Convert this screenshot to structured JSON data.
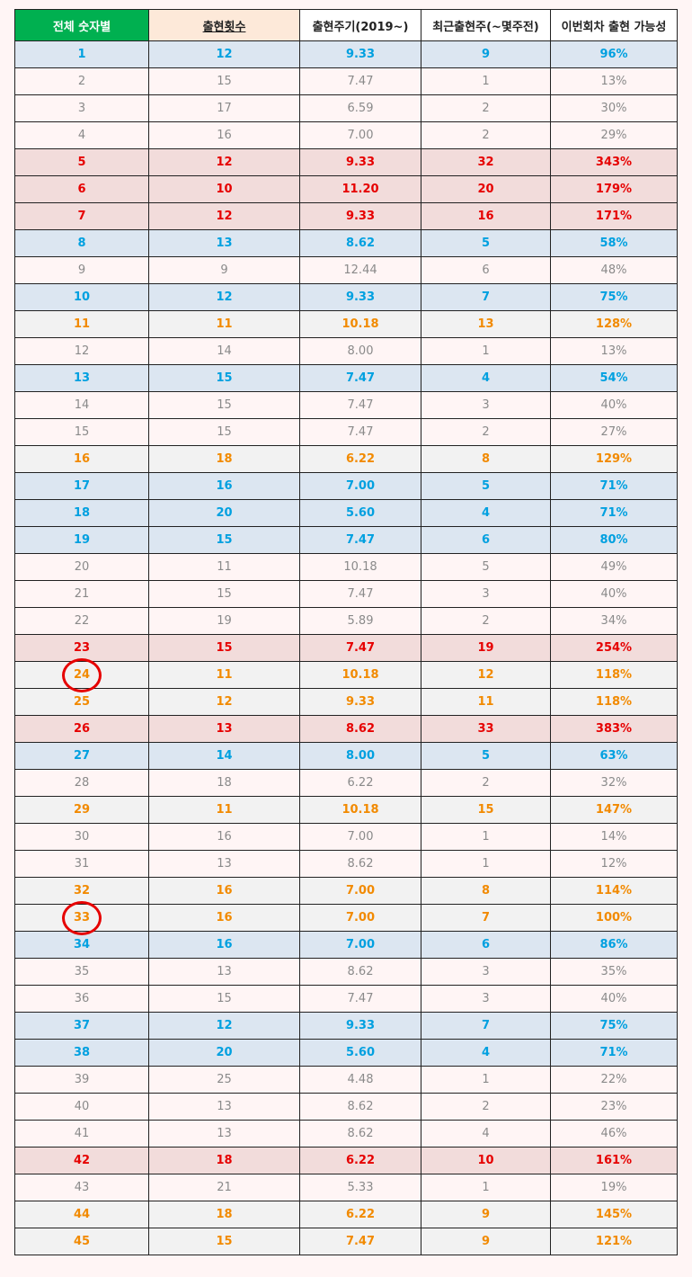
{
  "headers": [
    "전체 숫자별",
    "출현횟수",
    "출현주기(2019~)",
    "최근출현주(~몇주전)",
    "이번회차 출현 가능성"
  ],
  "colors": {
    "header_green": "#00b050",
    "header_peach": "#fde9d9",
    "blue_text": "#00a0e0",
    "blue_bg": "#dce6f1",
    "red_text": "#e60000",
    "red_bg": "#f2dcdb",
    "orange_text": "#f28a00",
    "orange_bg": "#f2f2f2",
    "plain_text": "#8a8a8a",
    "plain_bg": "#fff5f5",
    "circle": "#e60000"
  },
  "rows": [
    {
      "num": "1",
      "count": "12",
      "cycle": "9.33",
      "recent": "9",
      "prob": "96%",
      "style": "blue"
    },
    {
      "num": "2",
      "count": "15",
      "cycle": "7.47",
      "recent": "1",
      "prob": "13%",
      "style": "plain"
    },
    {
      "num": "3",
      "count": "17",
      "cycle": "6.59",
      "recent": "2",
      "prob": "30%",
      "style": "plain"
    },
    {
      "num": "4",
      "count": "16",
      "cycle": "7.00",
      "recent": "2",
      "prob": "29%",
      "style": "plain"
    },
    {
      "num": "5",
      "count": "12",
      "cycle": "9.33",
      "recent": "32",
      "prob": "343%",
      "style": "red"
    },
    {
      "num": "6",
      "count": "10",
      "cycle": "11.20",
      "recent": "20",
      "prob": "179%",
      "style": "red"
    },
    {
      "num": "7",
      "count": "12",
      "cycle": "9.33",
      "recent": "16",
      "prob": "171%",
      "style": "red"
    },
    {
      "num": "8",
      "count": "13",
      "cycle": "8.62",
      "recent": "5",
      "prob": "58%",
      "style": "blue"
    },
    {
      "num": "9",
      "count": "9",
      "cycle": "12.44",
      "recent": "6",
      "prob": "48%",
      "style": "plain"
    },
    {
      "num": "10",
      "count": "12",
      "cycle": "9.33",
      "recent": "7",
      "prob": "75%",
      "style": "blue"
    },
    {
      "num": "11",
      "count": "11",
      "cycle": "10.18",
      "recent": "13",
      "prob": "128%",
      "style": "orange"
    },
    {
      "num": "12",
      "count": "14",
      "cycle": "8.00",
      "recent": "1",
      "prob": "13%",
      "style": "plain"
    },
    {
      "num": "13",
      "count": "15",
      "cycle": "7.47",
      "recent": "4",
      "prob": "54%",
      "style": "blue"
    },
    {
      "num": "14",
      "count": "15",
      "cycle": "7.47",
      "recent": "3",
      "prob": "40%",
      "style": "plain"
    },
    {
      "num": "15",
      "count": "15",
      "cycle": "7.47",
      "recent": "2",
      "prob": "27%",
      "style": "plain"
    },
    {
      "num": "16",
      "count": "18",
      "cycle": "6.22",
      "recent": "8",
      "prob": "129%",
      "style": "orange"
    },
    {
      "num": "17",
      "count": "16",
      "cycle": "7.00",
      "recent": "5",
      "prob": "71%",
      "style": "blue"
    },
    {
      "num": "18",
      "count": "20",
      "cycle": "5.60",
      "recent": "4",
      "prob": "71%",
      "style": "blue"
    },
    {
      "num": "19",
      "count": "15",
      "cycle": "7.47",
      "recent": "6",
      "prob": "80%",
      "style": "blue"
    },
    {
      "num": "20",
      "count": "11",
      "cycle": "10.18",
      "recent": "5",
      "prob": "49%",
      "style": "plain"
    },
    {
      "num": "21",
      "count": "15",
      "cycle": "7.47",
      "recent": "3",
      "prob": "40%",
      "style": "plain"
    },
    {
      "num": "22",
      "count": "19",
      "cycle": "5.89",
      "recent": "2",
      "prob": "34%",
      "style": "plain"
    },
    {
      "num": "23",
      "count": "15",
      "cycle": "7.47",
      "recent": "19",
      "prob": "254%",
      "style": "red"
    },
    {
      "num": "24",
      "count": "11",
      "cycle": "10.18",
      "recent": "12",
      "prob": "118%",
      "style": "orange",
      "circled": true
    },
    {
      "num": "25",
      "count": "12",
      "cycle": "9.33",
      "recent": "11",
      "prob": "118%",
      "style": "orange"
    },
    {
      "num": "26",
      "count": "13",
      "cycle": "8.62",
      "recent": "33",
      "prob": "383%",
      "style": "red"
    },
    {
      "num": "27",
      "count": "14",
      "cycle": "8.00",
      "recent": "5",
      "prob": "63%",
      "style": "blue"
    },
    {
      "num": "28",
      "count": "18",
      "cycle": "6.22",
      "recent": "2",
      "prob": "32%",
      "style": "plain"
    },
    {
      "num": "29",
      "count": "11",
      "cycle": "10.18",
      "recent": "15",
      "prob": "147%",
      "style": "orange"
    },
    {
      "num": "30",
      "count": "16",
      "cycle": "7.00",
      "recent": "1",
      "prob": "14%",
      "style": "plain"
    },
    {
      "num": "31",
      "count": "13",
      "cycle": "8.62",
      "recent": "1",
      "prob": "12%",
      "style": "plain"
    },
    {
      "num": "32",
      "count": "16",
      "cycle": "7.00",
      "recent": "8",
      "prob": "114%",
      "style": "orange"
    },
    {
      "num": "33",
      "count": "16",
      "cycle": "7.00",
      "recent": "7",
      "prob": "100%",
      "style": "orange",
      "circled": true
    },
    {
      "num": "34",
      "count": "16",
      "cycle": "7.00",
      "recent": "6",
      "prob": "86%",
      "style": "blue"
    },
    {
      "num": "35",
      "count": "13",
      "cycle": "8.62",
      "recent": "3",
      "prob": "35%",
      "style": "plain"
    },
    {
      "num": "36",
      "count": "15",
      "cycle": "7.47",
      "recent": "3",
      "prob": "40%",
      "style": "plain"
    },
    {
      "num": "37",
      "count": "12",
      "cycle": "9.33",
      "recent": "7",
      "prob": "75%",
      "style": "blue"
    },
    {
      "num": "38",
      "count": "20",
      "cycle": "5.60",
      "recent": "4",
      "prob": "71%",
      "style": "blue"
    },
    {
      "num": "39",
      "count": "25",
      "cycle": "4.48",
      "recent": "1",
      "prob": "22%",
      "style": "plain"
    },
    {
      "num": "40",
      "count": "13",
      "cycle": "8.62",
      "recent": "2",
      "prob": "23%",
      "style": "plain"
    },
    {
      "num": "41",
      "count": "13",
      "cycle": "8.62",
      "recent": "4",
      "prob": "46%",
      "style": "plain"
    },
    {
      "num": "42",
      "count": "18",
      "cycle": "6.22",
      "recent": "10",
      "prob": "161%",
      "style": "red"
    },
    {
      "num": "43",
      "count": "21",
      "cycle": "5.33",
      "recent": "1",
      "prob": "19%",
      "style": "plain"
    },
    {
      "num": "44",
      "count": "18",
      "cycle": "6.22",
      "recent": "9",
      "prob": "145%",
      "style": "orange"
    },
    {
      "num": "45",
      "count": "15",
      "cycle": "7.47",
      "recent": "9",
      "prob": "121%",
      "style": "orange"
    }
  ]
}
